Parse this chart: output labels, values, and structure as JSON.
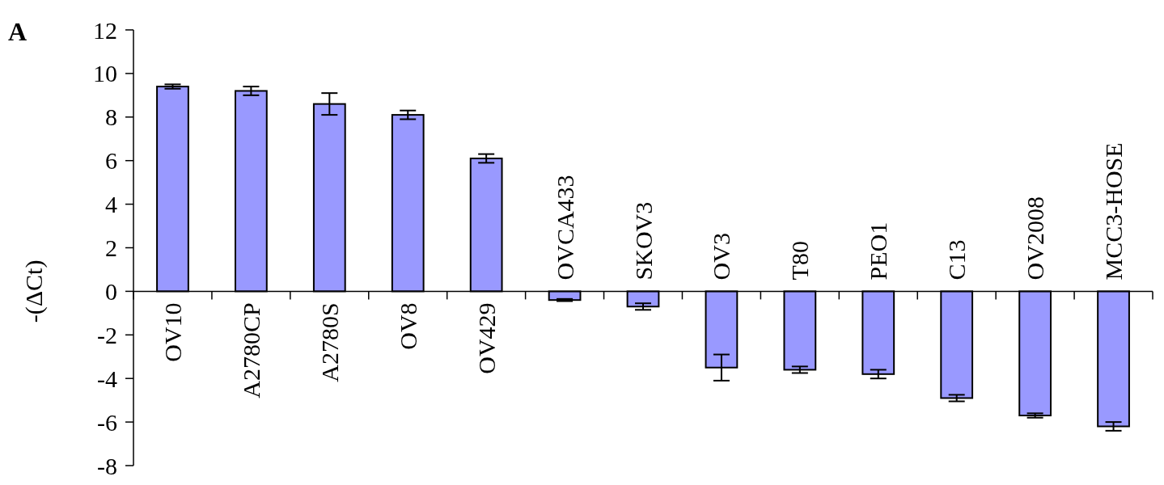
{
  "chart_data": {
    "type": "bar",
    "ylabel": "-(ΔCt)",
    "annotations": [
      "A"
    ],
    "categories": [
      "OV10",
      "A2780CP",
      "A2780S",
      "OV8",
      "OV429",
      "OVCA433",
      "SKOV3",
      "OV3",
      "T80",
      "PEO1",
      "C13",
      "OV2008",
      "MCC3-HOSE"
    ],
    "values": [
      9.4,
      9.2,
      8.6,
      8.1,
      6.1,
      -0.4,
      -0.7,
      -3.5,
      -3.6,
      -3.8,
      -4.9,
      -5.7,
      -6.2
    ],
    "errors": [
      0.1,
      0.2,
      0.5,
      0.2,
      0.2,
      0.05,
      0.15,
      0.6,
      0.15,
      0.2,
      0.15,
      0.1,
      0.2
    ],
    "color": "#9999ff",
    "ylim": [
      -8,
      12
    ],
    "yticks": [
      -8,
      -6,
      -4,
      -2,
      0,
      2,
      4,
      6,
      8,
      10,
      12
    ],
    "grid": false
  }
}
